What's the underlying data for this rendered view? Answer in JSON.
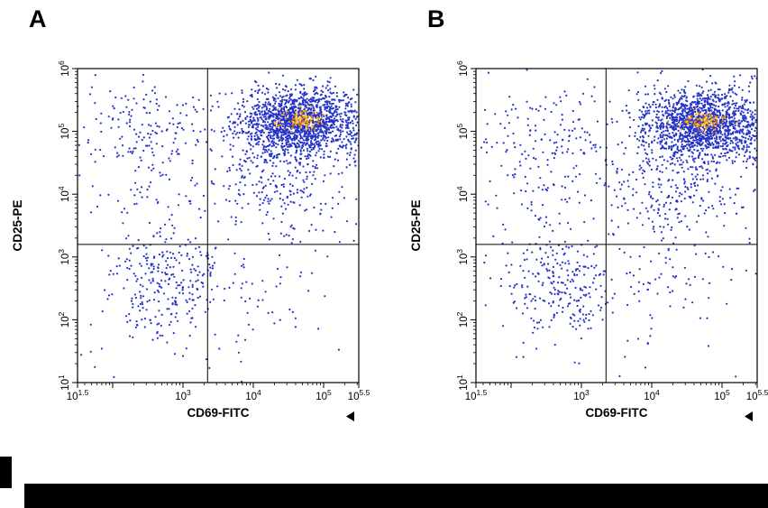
{
  "figure": {
    "panel_a_label": "A",
    "panel_b_label": "B"
  },
  "colors": {
    "dot_blue": "#2433c8",
    "core_orange": "#f59f00",
    "core_red": "#e8590c",
    "core_yellow": "#ffd43b",
    "axis_black": "#000000"
  },
  "chart_data": [
    {
      "type": "scatter",
      "panel_label": "A",
      "title": "Flow cytometry dot plot A",
      "xlabel": "CD69-FITC",
      "ylabel": "CD25-PE",
      "x_scale": "log10",
      "y_scale": "log10",
      "xlim_log": [
        1.5,
        5.5
      ],
      "ylim_log": [
        1,
        6
      ],
      "grid": false,
      "legend": "none",
      "x_ticks": [
        {
          "log": 1.5,
          "exp": "1.5"
        },
        {
          "log": 2,
          "exp": ""
        },
        {
          "log": 3,
          "exp": "3"
        },
        {
          "log": 4,
          "exp": "4"
        },
        {
          "log": 5,
          "exp": "5"
        },
        {
          "log": 5.5,
          "exp": "5.5"
        }
      ],
      "y_ticks": [
        {
          "log": 1,
          "exp": "1"
        },
        {
          "log": 2,
          "exp": "2"
        },
        {
          "log": 3,
          "exp": "3"
        },
        {
          "log": 4,
          "exp": "4"
        },
        {
          "log": 5,
          "exp": "5"
        },
        {
          "log": 6,
          "exp": "6"
        }
      ],
      "quadrant_gate_log": {
        "x": 3.35,
        "y": 3.2
      },
      "point_color": "#2433c8",
      "seed": 1234,
      "clusters": [
        {
          "name": "cd25pos-cd69pos-main",
          "cx": 4.65,
          "cy": 5.15,
          "sx": 0.42,
          "sy": 0.27,
          "n": 1500,
          "color": "#2433c8"
        },
        {
          "name": "main-tail-down",
          "cx": 4.35,
          "cy": 4.35,
          "sx": 0.5,
          "sy": 0.5,
          "n": 300,
          "color": "#2433c8"
        },
        {
          "name": "right-edge-pileup",
          "cx": 5.42,
          "cy": 5.05,
          "sx": 0.07,
          "sy": 0.3,
          "n": 50,
          "color": "#2433c8"
        },
        {
          "name": "cd25pos-cd69neg",
          "cx": 2.5,
          "cy": 5.05,
          "sx": 0.5,
          "sy": 0.42,
          "n": 170,
          "color": "#2433c8"
        },
        {
          "name": "mid-left-sparse",
          "cx": 2.6,
          "cy": 4.0,
          "sx": 0.5,
          "sy": 0.35,
          "n": 45,
          "color": "#2433c8"
        },
        {
          "name": "double-negative",
          "cx": 2.75,
          "cy": 2.55,
          "sx": 0.38,
          "sy": 0.45,
          "n": 270,
          "color": "#2433c8"
        },
        {
          "name": "cd69pos-cd25neg-sparse",
          "cx": 4.1,
          "cy": 2.5,
          "sx": 0.55,
          "sy": 0.5,
          "n": 45,
          "color": "#2433c8"
        },
        {
          "name": "background",
          "type": "uniform",
          "x0": 1.5,
          "x1": 5.5,
          "y0": 1,
          "y1": 6,
          "n": 60,
          "color": "#2433c8"
        },
        {
          "name": "density-core-orange",
          "cx": 4.68,
          "cy": 5.18,
          "sx": 0.16,
          "sy": 0.09,
          "n": 80,
          "color": "#f59f00"
        },
        {
          "name": "density-core-red",
          "cx": 4.66,
          "cy": 5.17,
          "sx": 0.1,
          "sy": 0.055,
          "n": 18,
          "color": "#e8590c"
        },
        {
          "name": "density-core-yellow",
          "cx": 4.7,
          "cy": 5.19,
          "sx": 0.07,
          "sy": 0.04,
          "n": 22,
          "color": "#ffd43b"
        }
      ]
    },
    {
      "type": "scatter",
      "panel_label": "B",
      "title": "Flow cytometry dot plot B",
      "xlabel": "CD69-FITC",
      "ylabel": "CD25-PE",
      "x_scale": "log10",
      "y_scale": "log10",
      "xlim_log": [
        1.5,
        5.5
      ],
      "ylim_log": [
        1,
        6
      ],
      "grid": false,
      "legend": "none",
      "x_ticks": [
        {
          "log": 1.5,
          "exp": "1.5"
        },
        {
          "log": 2,
          "exp": ""
        },
        {
          "log": 3,
          "exp": "3"
        },
        {
          "log": 4,
          "exp": "4"
        },
        {
          "log": 5,
          "exp": "5"
        },
        {
          "log": 5.5,
          "exp": "5.5"
        }
      ],
      "y_ticks": [
        {
          "log": 1,
          "exp": "1"
        },
        {
          "log": 2,
          "exp": "2"
        },
        {
          "log": 3,
          "exp": "3"
        },
        {
          "log": 4,
          "exp": "4"
        },
        {
          "log": 5,
          "exp": "5"
        },
        {
          "log": 6,
          "exp": "6"
        }
      ],
      "quadrant_gate_log": {
        "x": 3.35,
        "y": 3.2
      },
      "point_color": "#2433c8",
      "seed": 98765,
      "clusters": [
        {
          "name": "cd25pos-cd69pos-main",
          "cx": 4.7,
          "cy": 5.12,
          "sx": 0.42,
          "sy": 0.28,
          "n": 1450,
          "color": "#2433c8"
        },
        {
          "name": "main-tail-down",
          "cx": 4.35,
          "cy": 4.3,
          "sx": 0.52,
          "sy": 0.52,
          "n": 330,
          "color": "#2433c8"
        },
        {
          "name": "right-edge-pileup",
          "cx": 5.42,
          "cy": 5.0,
          "sx": 0.07,
          "sy": 0.32,
          "n": 60,
          "color": "#2433c8"
        },
        {
          "name": "cd25pos-cd69neg",
          "cx": 2.5,
          "cy": 5.0,
          "sx": 0.5,
          "sy": 0.45,
          "n": 150,
          "color": "#2433c8"
        },
        {
          "name": "mid-left-sparse",
          "cx": 2.6,
          "cy": 3.95,
          "sx": 0.5,
          "sy": 0.4,
          "n": 50,
          "color": "#2433c8"
        },
        {
          "name": "double-negative",
          "cx": 2.7,
          "cy": 2.55,
          "sx": 0.4,
          "sy": 0.45,
          "n": 240,
          "color": "#2433c8"
        },
        {
          "name": "cd69pos-cd25neg-sparse",
          "cx": 4.15,
          "cy": 2.55,
          "sx": 0.55,
          "sy": 0.5,
          "n": 70,
          "color": "#2433c8"
        },
        {
          "name": "background",
          "type": "uniform",
          "x0": 1.5,
          "x1": 5.5,
          "y0": 1,
          "y1": 6,
          "n": 60,
          "color": "#2433c8"
        },
        {
          "name": "density-core-orange",
          "cx": 4.74,
          "cy": 5.15,
          "sx": 0.16,
          "sy": 0.09,
          "n": 75,
          "color": "#f59f00"
        },
        {
          "name": "density-core-red",
          "cx": 4.72,
          "cy": 5.14,
          "sx": 0.1,
          "sy": 0.055,
          "n": 15,
          "color": "#e8590c"
        },
        {
          "name": "density-core-yellow",
          "cx": 4.76,
          "cy": 5.16,
          "sx": 0.07,
          "sy": 0.04,
          "n": 20,
          "color": "#ffd43b"
        }
      ]
    }
  ]
}
